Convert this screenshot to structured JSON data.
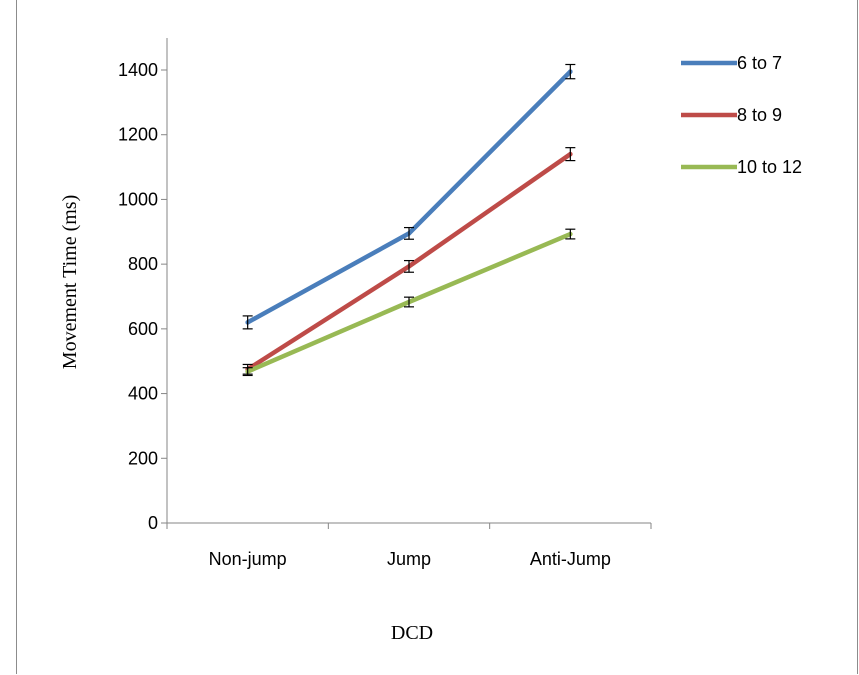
{
  "chart_data": {
    "type": "line",
    "categories": [
      "Non-jump",
      "Jump",
      "Anti-Jump"
    ],
    "xlabel": "DCD",
    "ylabel": "Movement Time (ms)",
    "ylim": [
      0,
      1400
    ],
    "yticks": [
      0,
      200,
      400,
      600,
      800,
      1000,
      1200,
      1400
    ],
    "grid": false,
    "legend_position": "right",
    "series": [
      {
        "name": "6 to 7",
        "color": "#4a7ebb",
        "values": [
          620,
          895,
          1395
        ],
        "errors": [
          20,
          18,
          22
        ]
      },
      {
        "name": "8 to 9",
        "color": "#be4b48",
        "values": [
          475,
          793,
          1140
        ],
        "errors": [
          15,
          18,
          20
        ]
      },
      {
        "name": "10 to 12",
        "color": "#98b954",
        "values": [
          468,
          683,
          893
        ],
        "errors": [
          12,
          15,
          15
        ]
      }
    ]
  }
}
